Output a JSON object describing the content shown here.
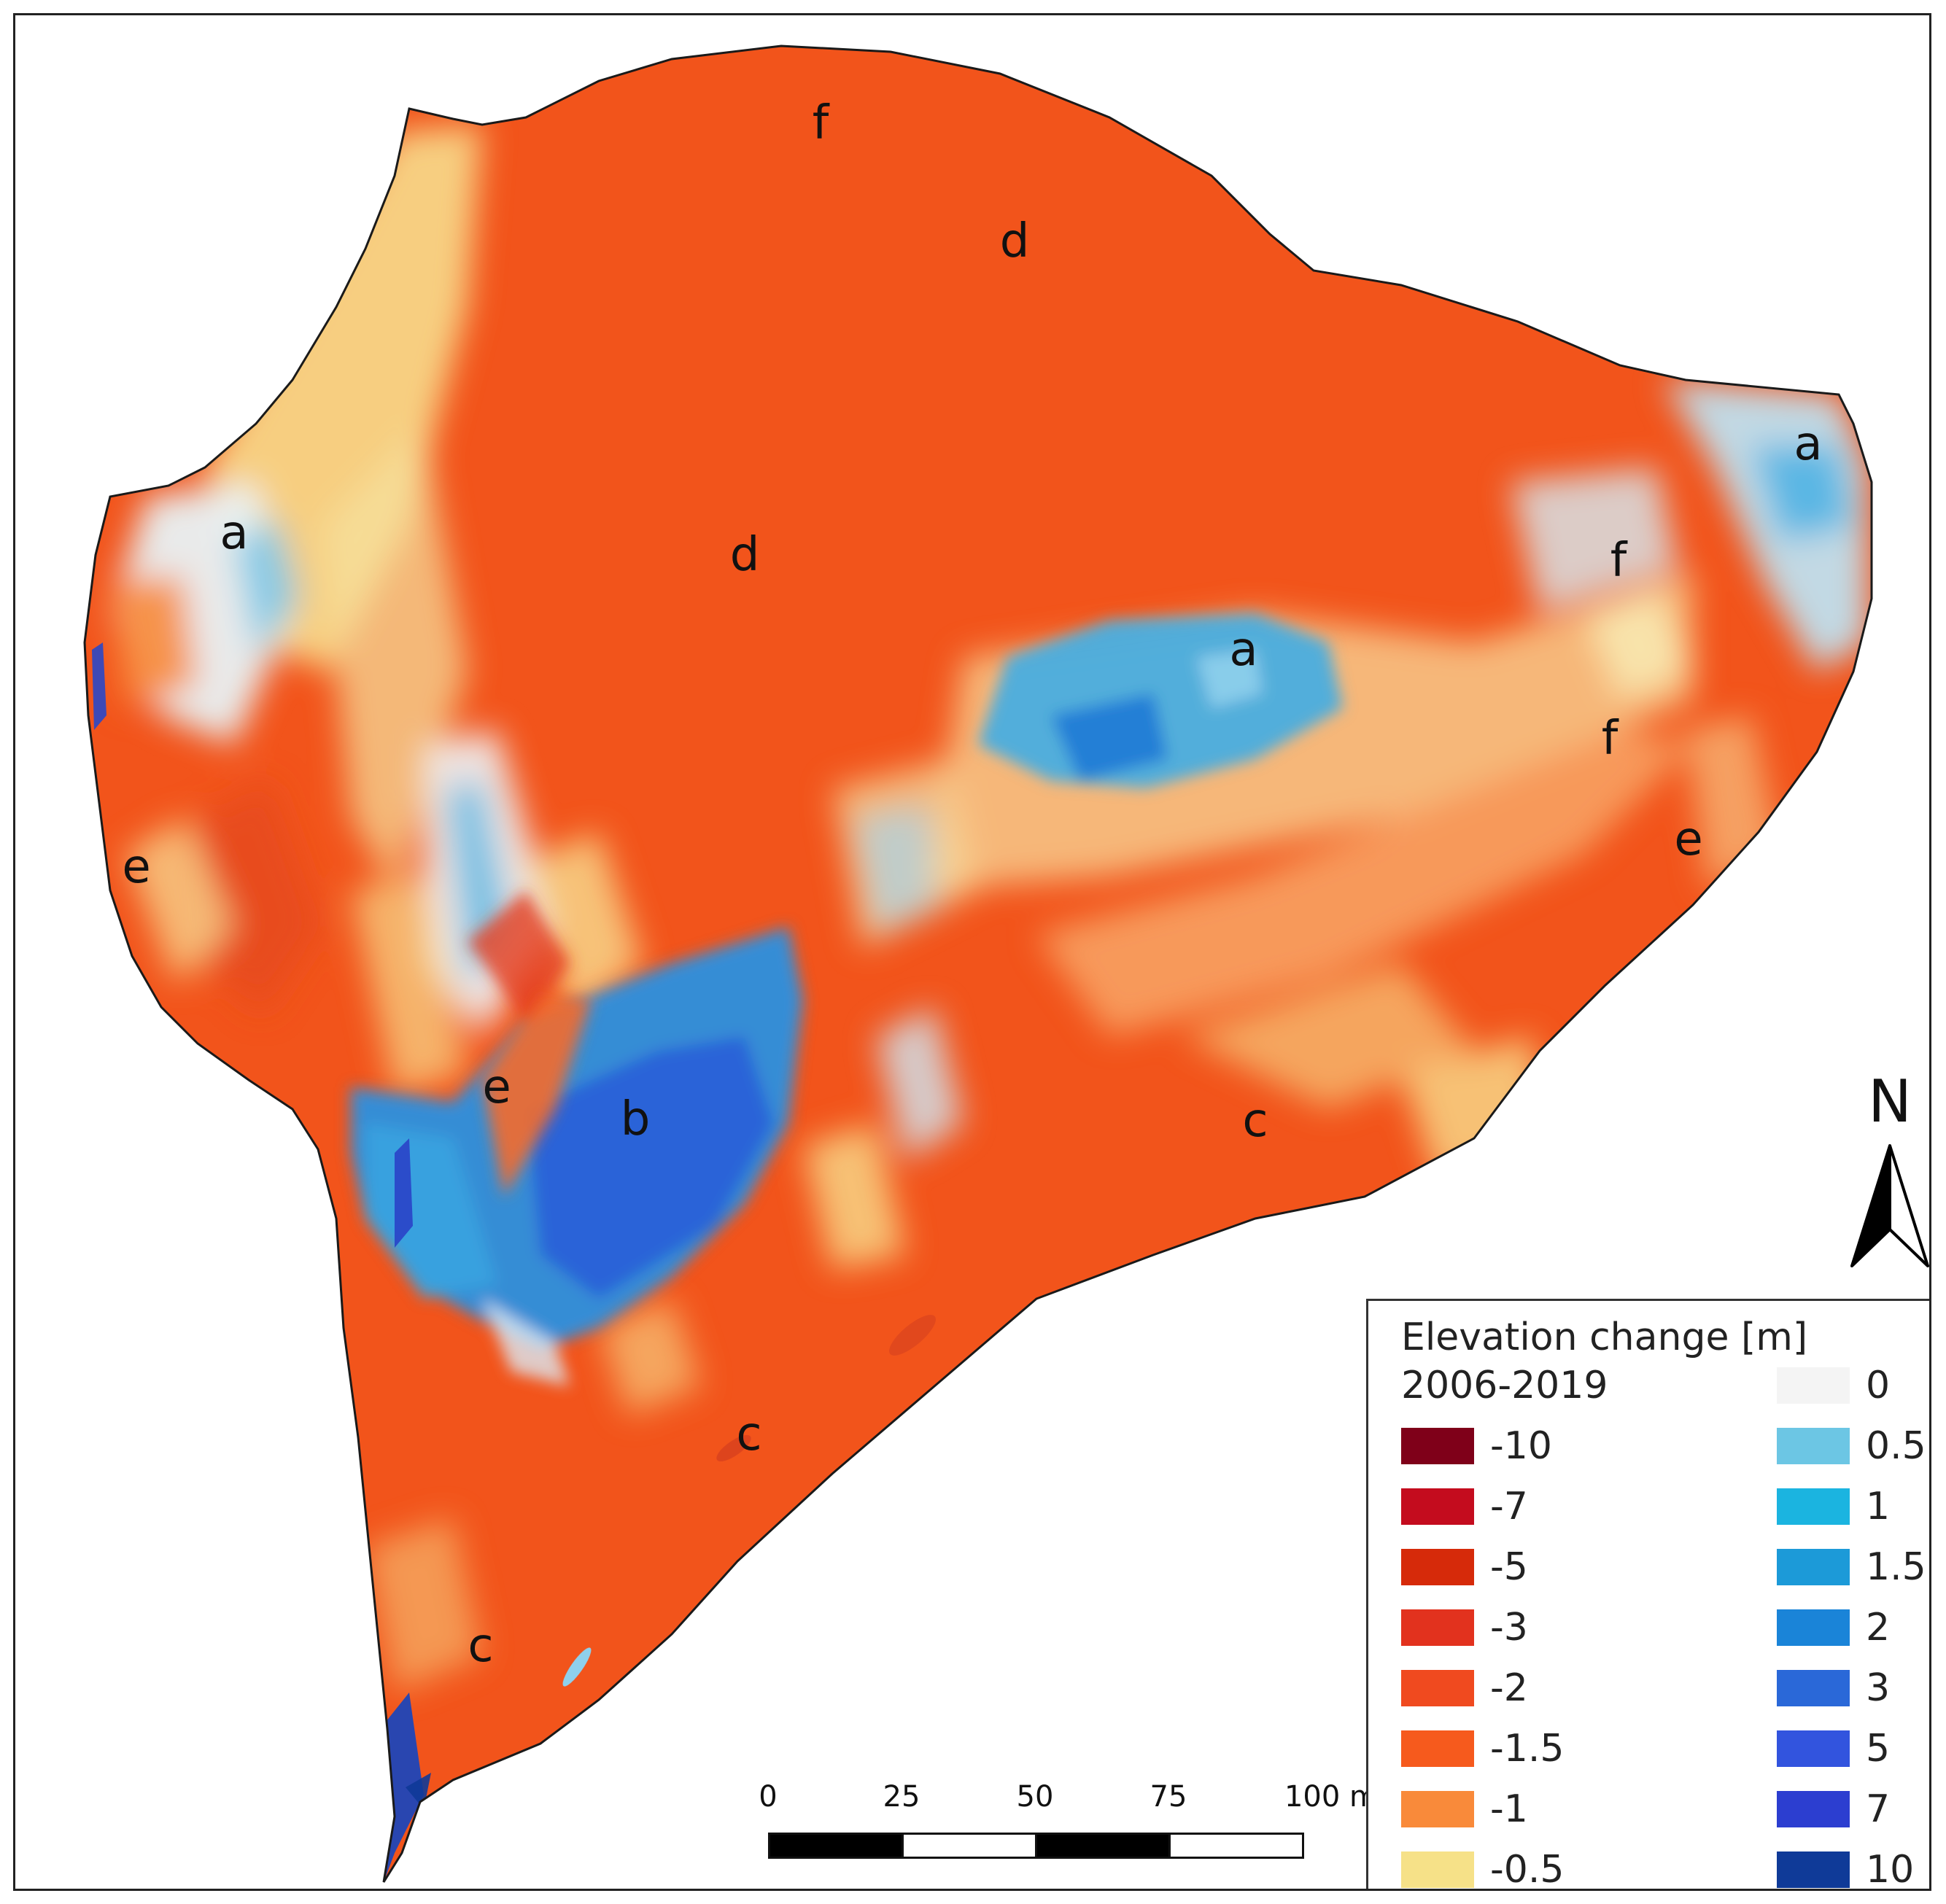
{
  "map": {
    "zone_labels": [
      {
        "letter": "f"
      },
      {
        "letter": "d"
      },
      {
        "letter": "a"
      },
      {
        "letter": "d"
      },
      {
        "letter": "a"
      },
      {
        "letter": "a"
      },
      {
        "letter": "f"
      },
      {
        "letter": "f"
      },
      {
        "letter": "e"
      },
      {
        "letter": "e"
      },
      {
        "letter": "e"
      },
      {
        "letter": "b"
      },
      {
        "letter": "c"
      },
      {
        "letter": "c"
      },
      {
        "letter": "c"
      }
    ],
    "north_label": "N"
  },
  "scale_bar": {
    "ticks": [
      "0",
      "25",
      "50",
      "75",
      "100 m"
    ],
    "segment_colors": [
      "#000000",
      "#ffffff",
      "#000000",
      "#ffffff"
    ]
  },
  "legend": {
    "title": "Elevation change [m]",
    "subtitle": "2006-2019",
    "negative_items": [
      {
        "label": "-10",
        "color": "#7f0019"
      },
      {
        "label": "-7",
        "color": "#c40c1e"
      },
      {
        "label": "-5",
        "color": "#d62a0a"
      },
      {
        "label": "-3",
        "color": "#e2321e"
      },
      {
        "label": "-2",
        "color": "#f04a1f"
      },
      {
        "label": "-1.5",
        "color": "#f65a1d"
      },
      {
        "label": "-1",
        "color": "#f98a3a"
      },
      {
        "label": "-0.5",
        "color": "#f6e188"
      }
    ],
    "positive_items": [
      {
        "label": "0",
        "color": "#f4f4f4"
      },
      {
        "label": "0.5",
        "color": "#6cc6e4"
      },
      {
        "label": "1",
        "color": "#1bb4e0"
      },
      {
        "label": "1.5",
        "color": "#1c9ad8"
      },
      {
        "label": "2",
        "color": "#1a84d8"
      },
      {
        "label": "3",
        "color": "#2a68d8"
      },
      {
        "label": "5",
        "color": "#3254de"
      },
      {
        "label": "7",
        "color": "#2c3ed0"
      },
      {
        "label": "10",
        "color": "#0f3a98"
      }
    ]
  }
}
